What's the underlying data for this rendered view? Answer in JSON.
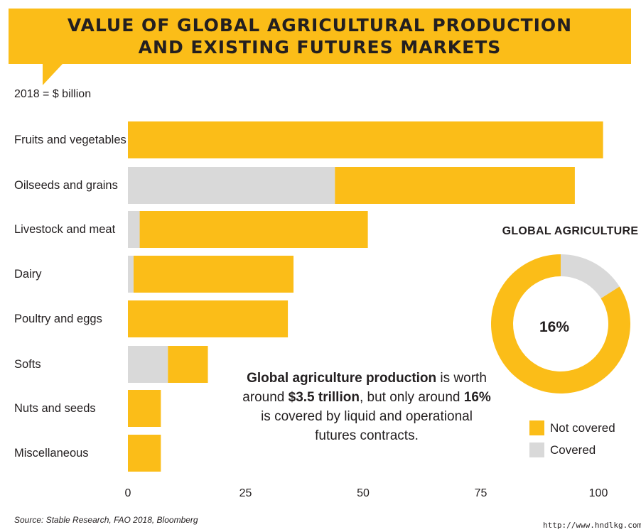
{
  "title_lines": [
    "VALUE OF GLOBAL AGRICULTURAL PRODUCTION",
    "AND EXISTING FUTURES MARKETS"
  ],
  "units_label": "2018 = $ billion",
  "colors": {
    "not_covered": "#fbbd18",
    "covered": "#d9d9d9",
    "banner": "#fbbd18"
  },
  "chart_data": {
    "type": "bar",
    "orientation": "horizontal",
    "stacked": true,
    "categories": [
      "Fruits and vegetables",
      "Oilseeds and grains",
      "Livestock and meat",
      "Dairy",
      "Poultry and eggs",
      "Softs",
      "Nuts and seeds",
      "Miscellaneous"
    ],
    "series": [
      {
        "name": "Covered",
        "values": [
          0,
          44,
          2.5,
          1.2,
          0,
          8.5,
          0,
          0
        ]
      },
      {
        "name": "Not covered",
        "values": [
          101,
          51,
          48.5,
          34,
          34,
          8.5,
          7,
          7
        ]
      }
    ],
    "xticks": [
      0,
      25,
      50,
      75,
      100
    ],
    "xlim": [
      0,
      100
    ],
    "grid": false,
    "legend": "bottom-right",
    "donut": {
      "title": "GLOBAL AGRICULTURE",
      "center_label": "16%",
      "slices": [
        {
          "name": "Covered",
          "value": 16
        },
        {
          "name": "Not covered",
          "value": 84
        }
      ]
    }
  },
  "annotation": {
    "part1": "Global agriculture production",
    "part2": " is worth around  ",
    "part3": "$3.5 trillion",
    "part4": ", but only around ",
    "part5": "16%",
    "part6": " is covered by liquid and operational futures contracts."
  },
  "legend": {
    "not_covered": "Not covered",
    "covered": "Covered"
  },
  "source": "Source: Stable Research, FAO 2018, Bloomberg",
  "watermark": "http://www.hndlkg.com"
}
